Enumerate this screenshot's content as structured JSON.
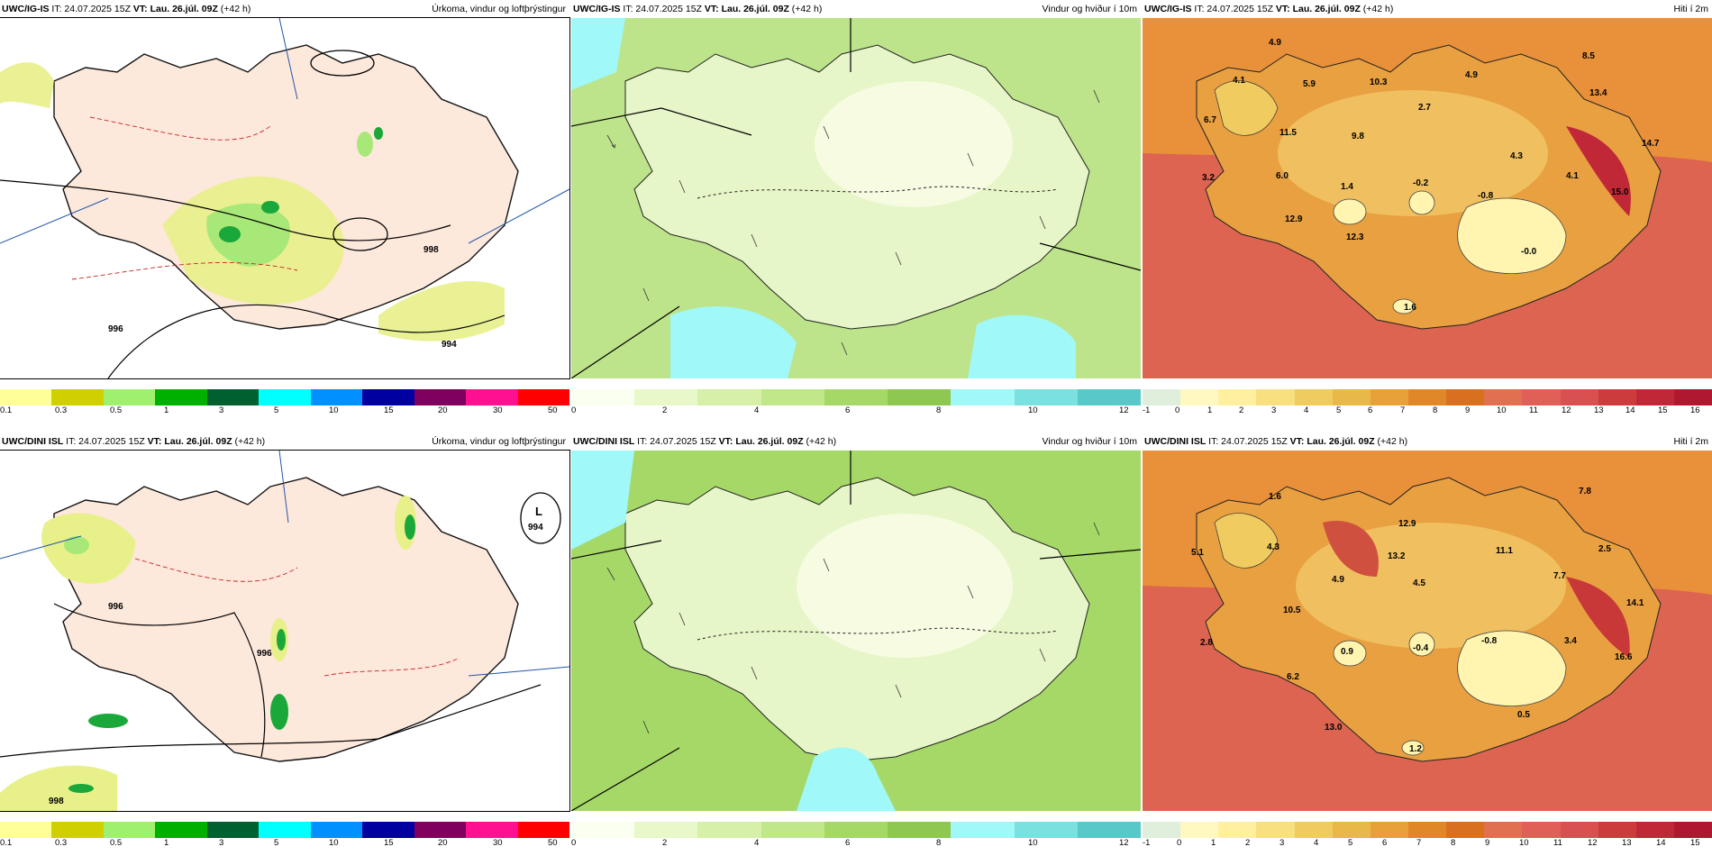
{
  "panels": [
    {
      "id": "ig-precip",
      "model": "UWC/IG-IS",
      "init": "IT: 24.07.2025 15Z",
      "valid_label": "VT: Lau. 26.júl. 09Z",
      "lead": "(+42 h)",
      "title": "Úrkoma, vindur og loftþrýstingur",
      "legend": {
        "colors": [
          "#ffff99",
          "#d0d000",
          "#a0f070",
          "#00b000",
          "#006030",
          "#00ffff",
          "#0090ff",
          "#0000a0",
          "#800060",
          "#ff1090",
          "#ff0000"
        ],
        "labels": [
          "0.1",
          "0.3",
          "0.5",
          "1",
          "3",
          "5",
          "10",
          "15",
          "20",
          "30",
          "50"
        ]
      },
      "map_labels": [
        {
          "text": "994"
        },
        {
          "text": "996"
        },
        {
          "text": "998"
        }
      ]
    },
    {
      "id": "ig-wind",
      "model": "UWC/IG-IS",
      "init": "IT: 24.07.2025 15Z",
      "valid_label": "VT: Lau. 26.júl. 09Z",
      "lead": "(+42 h)",
      "title": "Vindur og hviður í 10m",
      "legend": {
        "colors": [
          "#fafff0",
          "#e8f8c8",
          "#d6f0a8",
          "#c0e888",
          "#a6d868",
          "#8ec850",
          "#a0f8f8",
          "#7ae0e0",
          "#58c8c8"
        ],
        "labels": [
          "0",
          "2",
          "4",
          "6",
          "8",
          "10",
          "12"
        ]
      },
      "map_labels": []
    },
    {
      "id": "ig-temp",
      "model": "UWC/IG-IS",
      "init": "IT: 24.07.2025 15Z",
      "valid_label": "VT: Lau. 26.júl. 09Z",
      "lead": "(+42 h)",
      "title": "Hiti í 2m",
      "legend": {
        "colors": [
          "#e0eedc",
          "#fff8c0",
          "#fff0a0",
          "#f8e080",
          "#f0cc60",
          "#e8b848",
          "#e8a038",
          "#e08828",
          "#d87020",
          "#e07050",
          "#e06058",
          "#d85050",
          "#cc3c3c",
          "#c02838",
          "#b01830"
        ],
        "labels": [
          "-1",
          "0",
          "1",
          "2",
          "3",
          "4",
          "5",
          "6",
          "7",
          "8",
          "9",
          "10",
          "11",
          "12",
          "13",
          "14",
          "15",
          "16"
        ]
      },
      "map_labels": [
        {
          "text": "4.9"
        },
        {
          "text": "8.5"
        },
        {
          "text": "4.1"
        },
        {
          "text": "5.9"
        },
        {
          "text": "10.3"
        },
        {
          "text": "4.9"
        },
        {
          "text": "13.4"
        },
        {
          "text": "6.7"
        },
        {
          "text": "2.7"
        },
        {
          "text": "11.5"
        },
        {
          "text": "9.8"
        },
        {
          "text": "14.7"
        },
        {
          "text": "4.3"
        },
        {
          "text": "3.2"
        },
        {
          "text": "6.0"
        },
        {
          "text": "1.4"
        },
        {
          "text": "-0.2"
        },
        {
          "text": "4.1"
        },
        {
          "text": "15.0"
        },
        {
          "text": "-0.8"
        },
        {
          "text": "12.9"
        },
        {
          "text": "12.3"
        },
        {
          "text": "-0.0"
        },
        {
          "text": "1.6"
        }
      ]
    },
    {
      "id": "dini-precip",
      "model": "UWC/DINI ISL",
      "init": "IT: 24.07.2025 15Z",
      "valid_label": "VT: Lau. 26.júl. 09Z",
      "lead": "(+42 h)",
      "title": "Úrkoma, vindur og loftþrýstingur",
      "legend": {
        "colors": [
          "#ffff99",
          "#d0d000",
          "#a0f070",
          "#00b000",
          "#006030",
          "#00ffff",
          "#0090ff",
          "#0000a0",
          "#800060",
          "#ff1090",
          "#ff0000"
        ],
        "labels": [
          "0.1",
          "0.3",
          "0.5",
          "1",
          "3",
          "5",
          "10",
          "15",
          "20",
          "30",
          "50"
        ]
      },
      "map_labels": [
        {
          "text": "L"
        },
        {
          "text": "994"
        },
        {
          "text": "996"
        },
        {
          "text": "998"
        }
      ]
    },
    {
      "id": "dini-wind",
      "model": "UWC/DINI ISL",
      "init": "IT: 24.07.2025 15Z",
      "valid_label": "VT: Lau. 26.júl. 09Z",
      "lead": "(+42 h)",
      "title": "Vindur og hviður í 10m",
      "legend": {
        "colors": [
          "#fafff0",
          "#e8f8c8",
          "#d6f0a8",
          "#c0e888",
          "#a6d868",
          "#8ec850",
          "#a0f8f8",
          "#7ae0e0",
          "#58c8c8"
        ],
        "labels": [
          "0",
          "2",
          "4",
          "6",
          "8",
          "10",
          "12"
        ]
      },
      "map_labels": []
    },
    {
      "id": "dini-temp",
      "model": "UWC/DINI ISL",
      "init": "IT: 24.07.2025 15Z",
      "valid_label": "VT: Lau. 26.júl. 09Z",
      "lead": "(+42 h)",
      "title": "Hiti í 2m",
      "legend": {
        "colors": [
          "#e0eedc",
          "#fff8c0",
          "#fff0a0",
          "#f8e080",
          "#f0cc60",
          "#e8b848",
          "#e8a038",
          "#e08828",
          "#d87020",
          "#e07050",
          "#e06058",
          "#d85050",
          "#cc3c3c",
          "#c02838",
          "#b01830"
        ],
        "labels": [
          "-1",
          "0",
          "1",
          "2",
          "3",
          "4",
          "5",
          "6",
          "7",
          "8",
          "9",
          "10",
          "11",
          "12",
          "13",
          "14",
          "15"
        ]
      },
      "map_labels": [
        {
          "text": "1.6"
        },
        {
          "text": "7.8"
        },
        {
          "text": "12.9"
        },
        {
          "text": "5.1"
        },
        {
          "text": "4.3"
        },
        {
          "text": "13.2"
        },
        {
          "text": "11.1"
        },
        {
          "text": "2.5"
        },
        {
          "text": "4.9"
        },
        {
          "text": "4.5"
        },
        {
          "text": "7.7"
        },
        {
          "text": "14.1"
        },
        {
          "text": "10.5"
        },
        {
          "text": "2.8"
        },
        {
          "text": "0.9"
        },
        {
          "text": "-0.4"
        },
        {
          "text": "-0.8"
        },
        {
          "text": "3.4"
        },
        {
          "text": "16.6"
        },
        {
          "text": "6.2"
        },
        {
          "text": "13.0"
        },
        {
          "text": "0.5"
        },
        {
          "text": "1.2"
        }
      ]
    }
  ]
}
